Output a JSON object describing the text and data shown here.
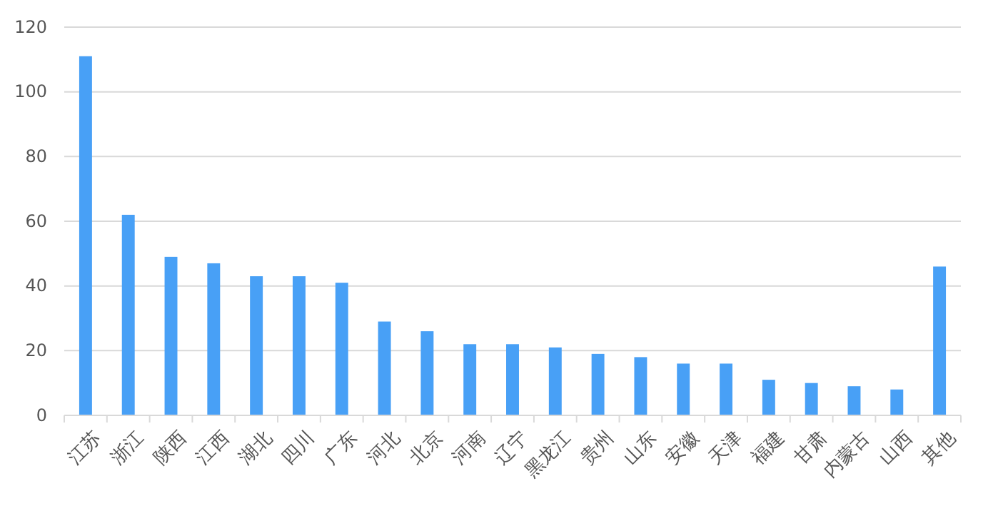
{
  "chart_data": {
    "type": "bar",
    "categories": [
      "江苏",
      "浙江",
      "陕西",
      "江西",
      "湖北",
      "四川",
      "广东",
      "河北",
      "北京",
      "河南",
      "辽宁",
      "黑龙江",
      "贵州",
      "山东",
      "安徽",
      "天津",
      "福建",
      "甘肃",
      "内蒙古",
      "山西",
      "其他"
    ],
    "values": [
      111,
      62,
      49,
      47,
      43,
      43,
      41,
      29,
      26,
      22,
      22,
      21,
      19,
      18,
      16,
      16,
      11,
      10,
      9,
      8,
      46
    ],
    "color": "#48a0f6",
    "ylim": [
      0,
      120
    ],
    "yticks": [
      0,
      20,
      40,
      60,
      80,
      100,
      120
    ],
    "grid": "y"
  }
}
